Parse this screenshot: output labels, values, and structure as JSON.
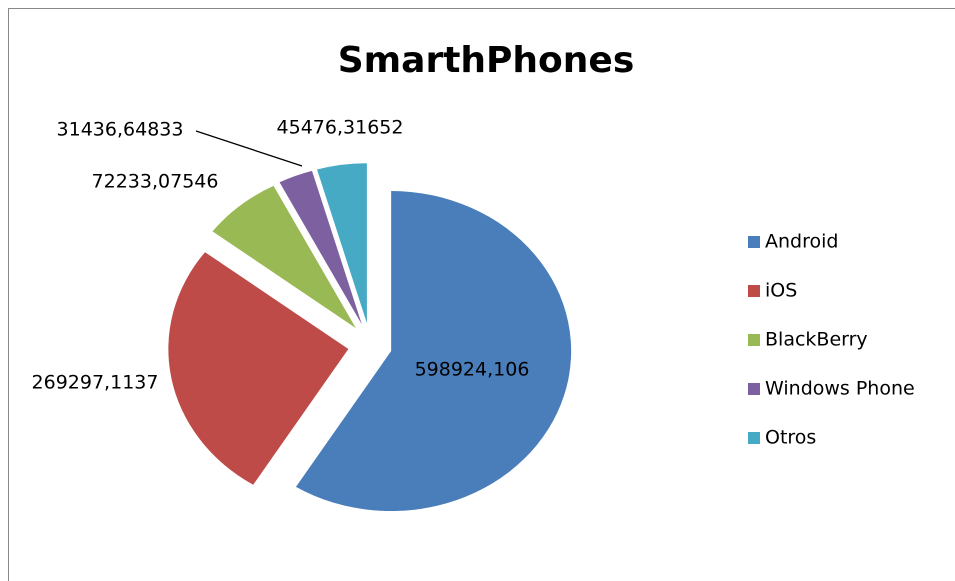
{
  "chart_data": {
    "type": "pie",
    "title": "SmarthPhones",
    "categories": [
      "Android",
      "iOS",
      "BlackBerry",
      "Windows Phone",
      "Otros"
    ],
    "values": [
      598924.106,
      269297.1137,
      72233.07546,
      31436.64833,
      45476.31652
    ],
    "value_labels": [
      "598924,106",
      "269297,1137",
      "72233,07546",
      "31436,64833",
      "45476,31652"
    ],
    "colors": [
      "#4a7ebb",
      "#be4b48",
      "#98b954",
      "#7d60a0",
      "#46aac5"
    ],
    "legend": "right"
  }
}
